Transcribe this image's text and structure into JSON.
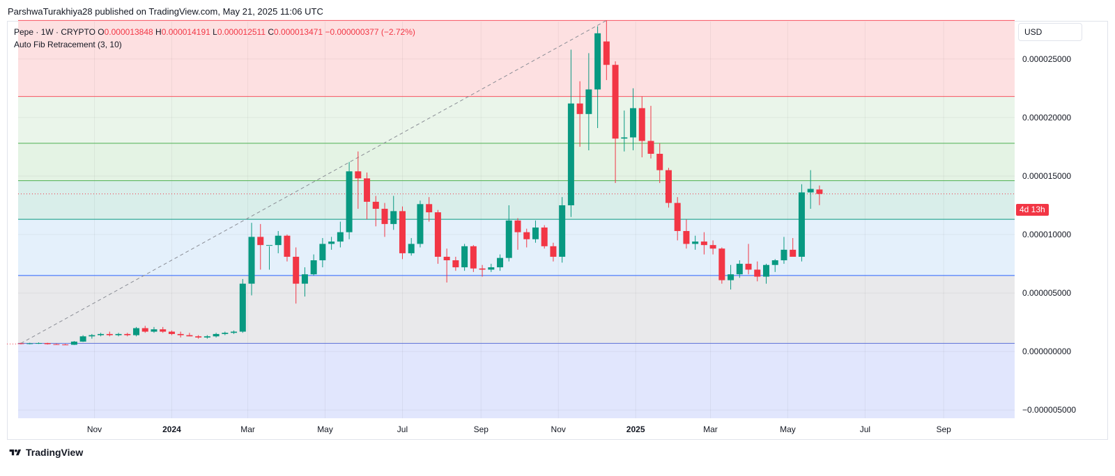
{
  "header": {
    "publish_text": "ParshwaTurakhiya28 published on TradingView.com, May 21, 2025 11:06 UTC"
  },
  "legend": {
    "symbol": "Pepe · 1W · CRYPTO",
    "o_label": "O",
    "o_value": "0.000013848",
    "h_label": "H",
    "h_value": "0.000014191",
    "l_label": "L",
    "l_value": "0.000012511",
    "c_label": "C",
    "c_value": "0.000013471",
    "change": "−0.000000377 (−2.72%)",
    "indicator": "Auto Fib Retracement (3, 10)"
  },
  "price_scale": {
    "currency": "USD",
    "countdown": "4d 13h"
  },
  "footer": {
    "brand": "TradingView"
  },
  "colors": {
    "up": "#089981",
    "down": "#f23645",
    "text": "#131722",
    "grid": "#eef0f4",
    "border": "#e0e3eb"
  },
  "chart_data": {
    "type": "candlestick",
    "symbol": "Pepe",
    "timeframe": "1W",
    "ylim": [
      -5.7e-06,
      2.82e-05
    ],
    "y_ticks": [
      {
        "value": 2.5e-05,
        "label": "0.000025000"
      },
      {
        "value": 2e-05,
        "label": "0.000020000"
      },
      {
        "value": 1.5e-05,
        "label": "0.000015000"
      },
      {
        "value": 1e-05,
        "label": "0.000010000"
      },
      {
        "value": 5e-06,
        "label": "0.000005000"
      },
      {
        "value": 0,
        "label": "0.000000000"
      },
      {
        "value": -5e-06,
        "label": "−0.000005000"
      }
    ],
    "x_ticks": [
      {
        "date": "2023-11-01",
        "label": "Nov",
        "bold": false
      },
      {
        "date": "2024-01-01",
        "label": "2024",
        "bold": true
      },
      {
        "date": "2024-03-01",
        "label": "Mar",
        "bold": false
      },
      {
        "date": "2024-05-01",
        "label": "May",
        "bold": false
      },
      {
        "date": "2024-07-01",
        "label": "Jul",
        "bold": false
      },
      {
        "date": "2024-09-01",
        "label": "Sep",
        "bold": false
      },
      {
        "date": "2024-11-01",
        "label": "Nov",
        "bold": false
      },
      {
        "date": "2025-01-01",
        "label": "2025",
        "bold": true
      },
      {
        "date": "2025-03-01",
        "label": "Mar",
        "bold": false
      },
      {
        "date": "2025-05-01",
        "label": "May",
        "bold": false
      },
      {
        "date": "2025-07-01",
        "label": "Jul",
        "bold": false
      },
      {
        "date": "2025-09-01",
        "label": "Sep",
        "bold": false
      }
    ],
    "x_range": [
      "2023-09-04",
      "2025-10-27"
    ],
    "current_price": 1.3471e-05,
    "fib_levels": [
      {
        "value": 2.83e-05,
        "color": "#f7525f"
      },
      {
        "value": 2.18e-05,
        "color": "#f7525f"
      },
      {
        "value": 1.78e-05,
        "color": "#4caf50"
      },
      {
        "value": 1.46e-05,
        "color": "#4caf50"
      },
      {
        "value": 1.13e-05,
        "color": "#089981"
      },
      {
        "value": 6.5e-06,
        "color": "#2962ff"
      },
      {
        "value": 7e-07,
        "color": "#5b6fd6"
      }
    ],
    "fib_zones": [
      {
        "from": 2.18e-05,
        "to": 2.83e-05,
        "color": "#fde0e1"
      },
      {
        "from": 1.78e-05,
        "to": 2.18e-05,
        "color": "#eaf5ea"
      },
      {
        "from": 1.46e-05,
        "to": 1.78e-05,
        "color": "#e4f3e4"
      },
      {
        "from": 1.13e-05,
        "to": 1.46e-05,
        "color": "#d9eeea"
      },
      {
        "from": 6.5e-06,
        "to": 1.13e-05,
        "color": "#e4f0fb"
      },
      {
        "from": 7e-07,
        "to": 6.5e-06,
        "color": "#e9e9eb"
      },
      {
        "from": -5.7e-06,
        "to": 7e-07,
        "color": "#e1e6fd"
      }
    ],
    "trend_line": {
      "from_date": "2023-09-04",
      "from_value": 7e-07,
      "to_date": "2024-12-09",
      "to_value": 2.83e-05
    },
    "candles": [
      {
        "date": "2023-09-04",
        "o": 7e-07,
        "h": 7.5e-07,
        "l": 6.2e-07,
        "c": 6.5e-07
      },
      {
        "date": "2023-09-11",
        "o": 6.5e-07,
        "h": 7.5e-07,
        "l": 6.2e-07,
        "c": 7e-07
      },
      {
        "date": "2023-09-18",
        "o": 7e-07,
        "h": 7.8e-07,
        "l": 6.5e-07,
        "c": 7.2e-07
      },
      {
        "date": "2023-09-25",
        "o": 7.2e-07,
        "h": 7.5e-07,
        "l": 6e-07,
        "c": 6.3e-07
      },
      {
        "date": "2023-10-02",
        "o": 6.3e-07,
        "h": 6.8e-07,
        "l": 5.8e-07,
        "c": 6e-07
      },
      {
        "date": "2023-10-09",
        "o": 6e-07,
        "h": 6.5e-07,
        "l": 5.5e-07,
        "c": 5.8e-07
      },
      {
        "date": "2023-10-16",
        "o": 5.8e-07,
        "h": 9e-07,
        "l": 5.6e-07,
        "c": 8.5e-07
      },
      {
        "date": "2023-10-23",
        "o": 8.5e-07,
        "h": 1.4e-06,
        "l": 8.2e-07,
        "c": 1.3e-06
      },
      {
        "date": "2023-10-30",
        "o": 1.3e-06,
        "h": 1.5e-06,
        "l": 1.1e-06,
        "c": 1.4e-06
      },
      {
        "date": "2023-11-06",
        "o": 1.4e-06,
        "h": 1.6e-06,
        "l": 1.3e-06,
        "c": 1.5e-06
      },
      {
        "date": "2023-11-13",
        "o": 1.5e-06,
        "h": 1.7e-06,
        "l": 1.3e-06,
        "c": 1.4e-06
      },
      {
        "date": "2023-11-20",
        "o": 1.4e-06,
        "h": 1.6e-06,
        "l": 1.3e-06,
        "c": 1.5e-06
      },
      {
        "date": "2023-11-27",
        "o": 1.5e-06,
        "h": 1.6e-06,
        "l": 1.3e-06,
        "c": 1.4e-06
      },
      {
        "date": "2023-12-04",
        "o": 1.4e-06,
        "h": 2.1e-06,
        "l": 1.3e-06,
        "c": 2e-06
      },
      {
        "date": "2023-12-11",
        "o": 2e-06,
        "h": 2.2e-06,
        "l": 1.6e-06,
        "c": 1.7e-06
      },
      {
        "date": "2023-12-18",
        "o": 1.7e-06,
        "h": 2.1e-06,
        "l": 1.6e-06,
        "c": 1.9e-06
      },
      {
        "date": "2023-12-25",
        "o": 1.9e-06,
        "h": 2.1e-06,
        "l": 1.6e-06,
        "c": 1.7e-06
      },
      {
        "date": "2024-01-01",
        "o": 1.7e-06,
        "h": 1.8e-06,
        "l": 1.4e-06,
        "c": 1.5e-06
      },
      {
        "date": "2024-01-08",
        "o": 1.5e-06,
        "h": 1.7e-06,
        "l": 1.2e-06,
        "c": 1.4e-06
      },
      {
        "date": "2024-01-15",
        "o": 1.4e-06,
        "h": 1.6e-06,
        "l": 1.3e-06,
        "c": 1.3e-06
      },
      {
        "date": "2024-01-22",
        "o": 1.3e-06,
        "h": 1.4e-06,
        "l": 1.1e-06,
        "c": 1.2e-06
      },
      {
        "date": "2024-01-29",
        "o": 1.2e-06,
        "h": 1.4e-06,
        "l": 1.1e-06,
        "c": 1.3e-06
      },
      {
        "date": "2024-02-05",
        "o": 1.3e-06,
        "h": 1.6e-06,
        "l": 1.2e-06,
        "c": 1.5e-06
      },
      {
        "date": "2024-02-12",
        "o": 1.5e-06,
        "h": 1.7e-06,
        "l": 1.4e-06,
        "c": 1.6e-06
      },
      {
        "date": "2024-02-19",
        "o": 1.6e-06,
        "h": 1.8e-06,
        "l": 1.5e-06,
        "c": 1.7e-06
      },
      {
        "date": "2024-02-26",
        "o": 1.7e-06,
        "h": 6.2e-06,
        "l": 1.6e-06,
        "c": 5.8e-06
      },
      {
        "date": "2024-03-04",
        "o": 5.8e-06,
        "h": 1.1e-05,
        "l": 4.8e-06,
        "c": 9.8e-06
      },
      {
        "date": "2024-03-11",
        "o": 9.8e-06,
        "h": 1.09e-05,
        "l": 7e-06,
        "c": 9.1e-06
      },
      {
        "date": "2024-03-18",
        "o": 9.1e-06,
        "h": 9e-06,
        "l": 7e-06,
        "c": 9.1e-06
      },
      {
        "date": "2024-03-25",
        "o": 9.1e-06,
        "h": 1.03e-05,
        "l": 8.4e-06,
        "c": 9.9e-06
      },
      {
        "date": "2024-04-01",
        "o": 9.9e-06,
        "h": 1e-05,
        "l": 7.7e-06,
        "c": 8.1e-06
      },
      {
        "date": "2024-04-08",
        "o": 8.1e-06,
        "h": 8.9e-06,
        "l": 4.1e-06,
        "c": 5.8e-06
      },
      {
        "date": "2024-04-15",
        "o": 5.8e-06,
        "h": 7.2e-06,
        "l": 4.7e-06,
        "c": 6.6e-06
      },
      {
        "date": "2024-04-22",
        "o": 6.6e-06,
        "h": 8.3e-06,
        "l": 6.5e-06,
        "c": 7.8e-06
      },
      {
        "date": "2024-04-29",
        "o": 7.8e-06,
        "h": 9.7e-06,
        "l": 7.2e-06,
        "c": 9.2e-06
      },
      {
        "date": "2024-05-06",
        "o": 9.2e-06,
        "h": 9.8e-06,
        "l": 8.7e-06,
        "c": 9.4e-06
      },
      {
        "date": "2024-05-13",
        "o": 9.4e-06,
        "h": 1.11e-05,
        "l": 8.9e-06,
        "c": 1.02e-05
      },
      {
        "date": "2024-05-20",
        "o": 1.02e-05,
        "h": 1.62e-05,
        "l": 9.6e-06,
        "c": 1.54e-05
      },
      {
        "date": "2024-05-27",
        "o": 1.54e-05,
        "h": 1.71e-05,
        "l": 1.22e-05,
        "c": 1.48e-05
      },
      {
        "date": "2024-06-03",
        "o": 1.48e-05,
        "h": 1.53e-05,
        "l": 1.13e-05,
        "c": 1.28e-05
      },
      {
        "date": "2024-06-10",
        "o": 1.28e-05,
        "h": 1.33e-05,
        "l": 1.07e-05,
        "c": 1.22e-05
      },
      {
        "date": "2024-06-17",
        "o": 1.22e-05,
        "h": 1.27e-05,
        "l": 9.8e-06,
        "c": 1.09e-05
      },
      {
        "date": "2024-06-24",
        "o": 1.09e-05,
        "h": 1.33e-05,
        "l": 1.04e-05,
        "c": 1.2e-05
      },
      {
        "date": "2024-07-01",
        "o": 1.2e-05,
        "h": 1.24e-05,
        "l": 7.9e-06,
        "c": 8.4e-06
      },
      {
        "date": "2024-07-08",
        "o": 8.4e-06,
        "h": 9.7e-06,
        "l": 8.2e-06,
        "c": 9.2e-06
      },
      {
        "date": "2024-07-15",
        "o": 9.2e-06,
        "h": 1.29e-05,
        "l": 8.9e-06,
        "c": 1.26e-05
      },
      {
        "date": "2024-07-22",
        "o": 1.26e-05,
        "h": 1.32e-05,
        "l": 1.11e-05,
        "c": 1.19e-05
      },
      {
        "date": "2024-07-29",
        "o": 1.19e-05,
        "h": 1.21e-05,
        "l": 7.5e-06,
        "c": 8.1e-06
      },
      {
        "date": "2024-08-05",
        "o": 8.1e-06,
        "h": 8.8e-06,
        "l": 5.9e-06,
        "c": 7.8e-06
      },
      {
        "date": "2024-08-12",
        "o": 7.8e-06,
        "h": 8.1e-06,
        "l": 6.9e-06,
        "c": 7.2e-06
      },
      {
        "date": "2024-08-19",
        "o": 7.2e-06,
        "h": 9.2e-06,
        "l": 6.9e-06,
        "c": 9e-06
      },
      {
        "date": "2024-08-26",
        "o": 9e-06,
        "h": 9.1e-06,
        "l": 6.8e-06,
        "c": 7.1e-06
      },
      {
        "date": "2024-09-02",
        "o": 7.1e-06,
        "h": 7.4e-06,
        "l": 6.4e-06,
        "c": 7e-06
      },
      {
        "date": "2024-09-09",
        "o": 7e-06,
        "h": 7.5e-06,
        "l": 6.8e-06,
        "c": 7.2e-06
      },
      {
        "date": "2024-09-16",
        "o": 7.2e-06,
        "h": 8.3e-06,
        "l": 6.9e-06,
        "c": 8e-06
      },
      {
        "date": "2024-09-23",
        "o": 8e-06,
        "h": 1.25e-05,
        "l": 7.7e-06,
        "c": 1.12e-05
      },
      {
        "date": "2024-09-30",
        "o": 1.12e-05,
        "h": 1.14e-05,
        "l": 8.7e-06,
        "c": 1.02e-05
      },
      {
        "date": "2024-10-07",
        "o": 1.02e-05,
        "h": 1.05e-05,
        "l": 8.9e-06,
        "c": 9.6e-06
      },
      {
        "date": "2024-10-14",
        "o": 9.6e-06,
        "h": 1.12e-05,
        "l": 9.3e-06,
        "c": 1.06e-05
      },
      {
        "date": "2024-10-21",
        "o": 1.06e-05,
        "h": 1.08e-05,
        "l": 8.8e-06,
        "c": 9e-06
      },
      {
        "date": "2024-10-28",
        "o": 9e-06,
        "h": 9.3e-06,
        "l": 7.7e-06,
        "c": 8.1e-06
      },
      {
        "date": "2024-11-04",
        "o": 8.1e-06,
        "h": 1.32e-05,
        "l": 7.6e-06,
        "c": 1.25e-05
      },
      {
        "date": "2024-11-11",
        "o": 1.25e-05,
        "h": 2.58e-05,
        "l": 1.15e-05,
        "c": 2.12e-05
      },
      {
        "date": "2024-11-18",
        "o": 2.12e-05,
        "h": 2.31e-05,
        "l": 1.75e-05,
        "c": 2.03e-05
      },
      {
        "date": "2024-11-25",
        "o": 2.03e-05,
        "h": 2.55e-05,
        "l": 1.72e-05,
        "c": 2.24e-05
      },
      {
        "date": "2024-12-02",
        "o": 2.24e-05,
        "h": 2.78e-05,
        "l": 1.91e-05,
        "c": 2.72e-05
      },
      {
        "date": "2024-12-09",
        "o": 2.65e-05,
        "h": 2.83e-05,
        "l": 2.32e-05,
        "c": 2.45e-05
      },
      {
        "date": "2024-12-16",
        "o": 2.45e-05,
        "h": 2.48e-05,
        "l": 1.44e-05,
        "c": 1.82e-05
      },
      {
        "date": "2024-12-23",
        "o": 1.82e-05,
        "h": 2.06e-05,
        "l": 1.71e-05,
        "c": 1.83e-05
      },
      {
        "date": "2024-12-30",
        "o": 1.83e-05,
        "h": 2.25e-05,
        "l": 1.72e-05,
        "c": 2.08e-05
      },
      {
        "date": "2025-01-06",
        "o": 2.08e-05,
        "h": 2.18e-05,
        "l": 1.66e-05,
        "c": 1.8e-05
      },
      {
        "date": "2025-01-13",
        "o": 1.8e-05,
        "h": 2.1e-05,
        "l": 1.65e-05,
        "c": 1.69e-05
      },
      {
        "date": "2025-01-20",
        "o": 1.69e-05,
        "h": 1.78e-05,
        "l": 1.44e-05,
        "c": 1.55e-05
      },
      {
        "date": "2025-01-27",
        "o": 1.55e-05,
        "h": 1.57e-05,
        "l": 1.23e-05,
        "c": 1.27e-05
      },
      {
        "date": "2025-02-03",
        "o": 1.27e-05,
        "h": 1.32e-05,
        "l": 9.5e-06,
        "c": 1.03e-05
      },
      {
        "date": "2025-02-10",
        "o": 1.03e-05,
        "h": 1.13e-05,
        "l": 8.8e-06,
        "c": 9.2e-06
      },
      {
        "date": "2025-02-17",
        "o": 9.2e-06,
        "h": 9.9e-06,
        "l": 8.7e-06,
        "c": 9.4e-06
      },
      {
        "date": "2025-02-24",
        "o": 9.4e-06,
        "h": 1.02e-05,
        "l": 8.3e-06,
        "c": 9.1e-06
      },
      {
        "date": "2025-03-03",
        "o": 9.1e-06,
        "h": 9.5e-06,
        "l": 8.3e-06,
        "c": 8.8e-06
      },
      {
        "date": "2025-03-10",
        "o": 8.8e-06,
        "h": 8.9e-06,
        "l": 5.8e-06,
        "c": 6.1e-06
      },
      {
        "date": "2025-03-17",
        "o": 6.1e-06,
        "h": 7.4e-06,
        "l": 5.3e-06,
        "c": 6.6e-06
      },
      {
        "date": "2025-03-24",
        "o": 6.6e-06,
        "h": 7.8e-06,
        "l": 6.3e-06,
        "c": 7.5e-06
      },
      {
        "date": "2025-03-31",
        "o": 7.5e-06,
        "h": 9.2e-06,
        "l": 6.6e-06,
        "c": 7e-06
      },
      {
        "date": "2025-04-07",
        "o": 7e-06,
        "h": 7.7e-06,
        "l": 6e-06,
        "c": 6.4e-06
      },
      {
        "date": "2025-04-14",
        "o": 6.4e-06,
        "h": 7.5e-06,
        "l": 5.8e-06,
        "c": 7.4e-06
      },
      {
        "date": "2025-04-21",
        "o": 7.4e-06,
        "h": 7.9e-06,
        "l": 6.8e-06,
        "c": 7.8e-06
      },
      {
        "date": "2025-04-28",
        "o": 7.8e-06,
        "h": 9.8e-06,
        "l": 7.5e-06,
        "c": 8.7e-06
      },
      {
        "date": "2025-05-05",
        "o": 8.7e-06,
        "h": 9.7e-06,
        "l": 8.2e-06,
        "c": 8.1e-06
      },
      {
        "date": "2025-05-12",
        "o": 8.1e-06,
        "h": 1.43e-05,
        "l": 7.7e-06,
        "c": 1.36e-05
      },
      {
        "date": "2025-05-19",
        "o": 1.36e-05,
        "h": 1.55e-05,
        "l": 1.22e-05,
        "c": 1.39e-05
      },
      {
        "date": "2025-05-26",
        "o": 1.3848e-05,
        "h": 1.4191e-05,
        "l": 1.2511e-05,
        "c": 1.3471e-05
      }
    ]
  }
}
